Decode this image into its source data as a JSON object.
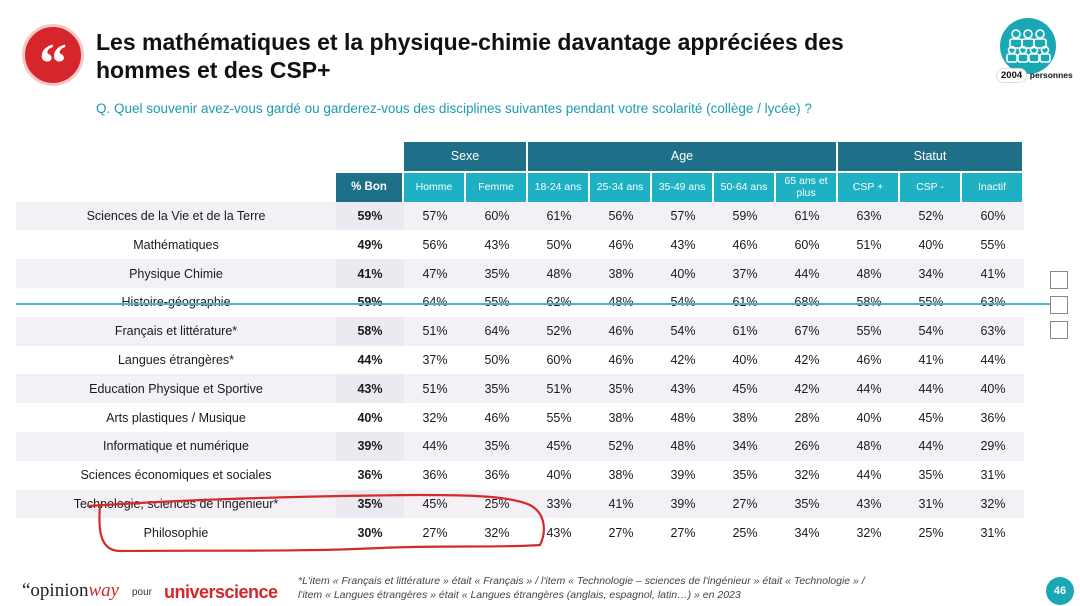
{
  "header": {
    "title": "Les mathématiques et la physique-chimie davantage appréciées des hommes et des CSP+",
    "question": "Q. Quel souvenir avez-vous gardé ou garderez-vous des disciplines suivantes pendant votre scolarité (collège / lycée) ?",
    "sample_count": "2004",
    "sample_label": "personnes"
  },
  "table": {
    "groups": [
      "Sexe",
      "Age",
      "Statut"
    ],
    "pct_header": "% Bon",
    "columns": [
      "Homme",
      "Femme",
      "18-24 ans",
      "25-34 ans",
      "35-49 ans",
      "50-64 ans",
      "65 ans et plus",
      "CSP +",
      "CSP -",
      "Inactif"
    ],
    "rows": [
      {
        "label": "Sciences de la Vie et de la Terre",
        "pct": "59%",
        "values": [
          "57%",
          "60%",
          "61%",
          "56%",
          "57%",
          "59%",
          "61%",
          "63%",
          "52%",
          "60%"
        ]
      },
      {
        "label": "Mathématiques",
        "pct": "49%",
        "values": [
          "56%",
          "43%",
          "50%",
          "46%",
          "43%",
          "46%",
          "60%",
          "51%",
          "40%",
          "55%"
        ]
      },
      {
        "label": "Physique Chimie",
        "pct": "41%",
        "values": [
          "47%",
          "35%",
          "48%",
          "38%",
          "40%",
          "37%",
          "44%",
          "48%",
          "34%",
          "41%"
        ]
      },
      {
        "label": "Histoire-géographie",
        "pct": "59%",
        "values": [
          "64%",
          "55%",
          "62%",
          "48%",
          "54%",
          "61%",
          "68%",
          "58%",
          "55%",
          "63%"
        ]
      },
      {
        "label": "Français et littérature*",
        "pct": "58%",
        "values": [
          "51%",
          "64%",
          "52%",
          "46%",
          "54%",
          "61%",
          "67%",
          "55%",
          "54%",
          "63%"
        ]
      },
      {
        "label": "Langues étrangères*",
        "pct": "44%",
        "values": [
          "37%",
          "50%",
          "60%",
          "46%",
          "42%",
          "40%",
          "42%",
          "46%",
          "41%",
          "44%"
        ]
      },
      {
        "label": "Education Physique et Sportive",
        "pct": "43%",
        "values": [
          "51%",
          "35%",
          "51%",
          "35%",
          "43%",
          "45%",
          "42%",
          "44%",
          "44%",
          "40%"
        ]
      },
      {
        "label": "Arts plastiques / Musique",
        "pct": "40%",
        "values": [
          "32%",
          "46%",
          "55%",
          "38%",
          "48%",
          "38%",
          "28%",
          "40%",
          "45%",
          "36%"
        ]
      },
      {
        "label": "Informatique et numérique",
        "pct": "39%",
        "values": [
          "44%",
          "35%",
          "45%",
          "52%",
          "48%",
          "34%",
          "26%",
          "48%",
          "44%",
          "29%"
        ]
      },
      {
        "label": "Sciences économiques et sociales",
        "pct": "36%",
        "values": [
          "36%",
          "36%",
          "40%",
          "38%",
          "39%",
          "35%",
          "32%",
          "44%",
          "35%",
          "31%"
        ]
      },
      {
        "label": "Technologie, sciences de l'ingénieur*",
        "pct": "35%",
        "values": [
          "45%",
          "25%",
          "33%",
          "41%",
          "39%",
          "27%",
          "35%",
          "43%",
          "31%",
          "32%"
        ]
      },
      {
        "label": "Philosophie",
        "pct": "30%",
        "values": [
          "27%",
          "32%",
          "43%",
          "27%",
          "27%",
          "25%",
          "34%",
          "32%",
          "25%",
          "31%"
        ]
      }
    ]
  },
  "footer": {
    "brand_opinion_a": "“opinion",
    "brand_opinion_b": "way",
    "brand_pour": "pour",
    "brand_univ": "universcience",
    "footnote_line1": "*L'item « Français et littérature » était « Français » / l'item « Technologie – sciences de l'ingénieur » était « Technologie » /",
    "footnote_line2": "l'item « Langues étrangères » était « Langues étrangères (anglais, espagnol, latin…) » en 2023",
    "page_number": "46"
  },
  "colors": {
    "dark_teal": "#206f88",
    "light_teal": "#1eb1c4",
    "accent_red": "#d7262b"
  }
}
